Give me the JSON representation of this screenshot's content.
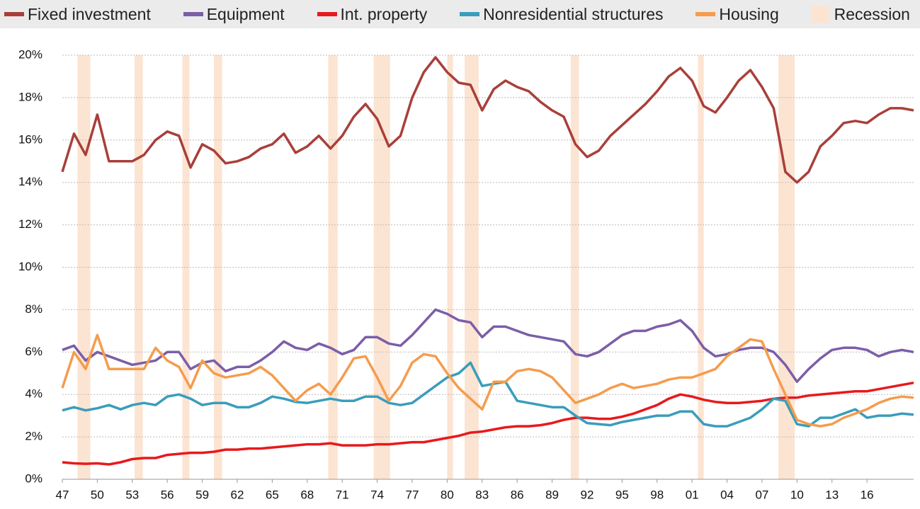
{
  "chart_data": {
    "type": "line",
    "x": [
      1947,
      1948,
      1949,
      1950,
      1951,
      1952,
      1953,
      1954,
      1955,
      1956,
      1957,
      1958,
      1959,
      1960,
      1961,
      1962,
      1963,
      1964,
      1965,
      1966,
      1967,
      1968,
      1969,
      1970,
      1971,
      1972,
      1973,
      1974,
      1975,
      1976,
      1977,
      1978,
      1979,
      1980,
      1981,
      1982,
      1983,
      1984,
      1985,
      1986,
      1987,
      1988,
      1989,
      1990,
      1991,
      1992,
      1993,
      1994,
      1995,
      1996,
      1997,
      1998,
      1999,
      2000,
      2001,
      2002,
      2003,
      2004,
      2005,
      2006,
      2007,
      2008,
      2009,
      2010,
      2011,
      2012,
      2013,
      2014,
      2015,
      2016,
      2017,
      2018,
      2019,
      2020
    ],
    "xlim": [
      1947,
      2020
    ],
    "xticks": [
      {
        "value": 1947,
        "label": "47"
      },
      {
        "value": 1950,
        "label": "50"
      },
      {
        "value": 1953,
        "label": "53"
      },
      {
        "value": 1956,
        "label": "56"
      },
      {
        "value": 1959,
        "label": "59"
      },
      {
        "value": 1962,
        "label": "62"
      },
      {
        "value": 1965,
        "label": "65"
      },
      {
        "value": 1968,
        "label": "68"
      },
      {
        "value": 1971,
        "label": "71"
      },
      {
        "value": 1974,
        "label": "74"
      },
      {
        "value": 1977,
        "label": "77"
      },
      {
        "value": 1980,
        "label": "80"
      },
      {
        "value": 1983,
        "label": "83"
      },
      {
        "value": 1986,
        "label": "86"
      },
      {
        "value": 1989,
        "label": "89"
      },
      {
        "value": 1992,
        "label": "92"
      },
      {
        "value": 1995,
        "label": "95"
      },
      {
        "value": 1998,
        "label": "98"
      },
      {
        "value": 2001,
        "label": "01"
      },
      {
        "value": 2004,
        "label": "04"
      },
      {
        "value": 2007,
        "label": "07"
      },
      {
        "value": 2010,
        "label": "10"
      },
      {
        "value": 2013,
        "label": "13"
      },
      {
        "value": 2016,
        "label": "16"
      }
    ],
    "ylim": [
      0,
      20
    ],
    "yticks": [
      {
        "value": 0,
        "label": "0%"
      },
      {
        "value": 2,
        "label": "2%"
      },
      {
        "value": 4,
        "label": "4%"
      },
      {
        "value": 6,
        "label": "6%"
      },
      {
        "value": 8,
        "label": "8%"
      },
      {
        "value": 10,
        "label": "10%"
      },
      {
        "value": 12,
        "label": "12%"
      },
      {
        "value": 14,
        "label": "14%"
      },
      {
        "value": 16,
        "label": "16%"
      },
      {
        "value": 18,
        "label": "18%"
      },
      {
        "value": 20,
        "label": "20%"
      }
    ],
    "grid": true,
    "series": [
      {
        "name": "Fixed investment",
        "color": "#a93f3a",
        "values": [
          14.5,
          16.3,
          15.3,
          17.2,
          15.0,
          15.0,
          15.0,
          15.3,
          16.0,
          16.4,
          16.2,
          14.7,
          15.8,
          15.5,
          14.9,
          15.0,
          15.2,
          15.6,
          15.8,
          16.3,
          15.4,
          15.7,
          16.2,
          15.6,
          16.2,
          17.1,
          17.7,
          17.0,
          15.7,
          16.2,
          18.0,
          19.2,
          19.9,
          19.2,
          18.7,
          18.6,
          17.4,
          18.4,
          18.8,
          18.5,
          18.3,
          17.8,
          17.4,
          17.1,
          15.8,
          15.2,
          15.5,
          16.2,
          16.7,
          17.2,
          17.7,
          18.3,
          19.0,
          19.4,
          18.8,
          17.6,
          17.3,
          18.0,
          18.8,
          19.3,
          18.5,
          17.5,
          14.5,
          14.0,
          14.5,
          15.7,
          16.2,
          16.8,
          16.9,
          16.8,
          17.2,
          17.5,
          17.5,
          17.4
        ]
      },
      {
        "name": "Equipment",
        "color": "#7b5ea7",
        "values": [
          6.1,
          6.3,
          5.6,
          6.0,
          5.8,
          5.6,
          5.4,
          5.5,
          5.6,
          6.0,
          6.0,
          5.2,
          5.5,
          5.6,
          5.1,
          5.3,
          5.3,
          5.6,
          6.0,
          6.5,
          6.2,
          6.1,
          6.4,
          6.2,
          5.9,
          6.1,
          6.7,
          6.7,
          6.4,
          6.3,
          6.8,
          7.4,
          8.0,
          7.8,
          7.5,
          7.4,
          6.7,
          7.2,
          7.2,
          7.0,
          6.8,
          6.7,
          6.6,
          6.5,
          5.9,
          5.8,
          6.0,
          6.4,
          6.8,
          7.0,
          7.0,
          7.2,
          7.3,
          7.5,
          7.0,
          6.2,
          5.8,
          5.9,
          6.1,
          6.2,
          6.2,
          6.0,
          5.4,
          4.6,
          5.2,
          5.7,
          6.1,
          6.2,
          6.2,
          6.1,
          5.8,
          6.0,
          6.1,
          6.0
        ]
      },
      {
        "name": "Int. property",
        "color": "#e8191c",
        "values": [
          0.8,
          0.75,
          0.73,
          0.75,
          0.7,
          0.8,
          0.95,
          1.0,
          1.0,
          1.15,
          1.2,
          1.25,
          1.25,
          1.3,
          1.4,
          1.4,
          1.45,
          1.45,
          1.5,
          1.55,
          1.6,
          1.65,
          1.65,
          1.7,
          1.6,
          1.6,
          1.6,
          1.65,
          1.65,
          1.7,
          1.75,
          1.75,
          1.85,
          1.95,
          2.05,
          2.2,
          2.25,
          2.35,
          2.45,
          2.5,
          2.5,
          2.55,
          2.65,
          2.8,
          2.9,
          2.9,
          2.85,
          2.85,
          2.95,
          3.1,
          3.3,
          3.5,
          3.8,
          4.0,
          3.9,
          3.75,
          3.65,
          3.6,
          3.6,
          3.65,
          3.7,
          3.8,
          3.85,
          3.85,
          3.95,
          4.0,
          4.05,
          4.1,
          4.15,
          4.15,
          4.25,
          4.35,
          4.45,
          4.55
        ]
      },
      {
        "name": "Nonresidential structures",
        "color": "#3a9dbb",
        "values": [
          3.25,
          3.4,
          3.25,
          3.35,
          3.5,
          3.3,
          3.5,
          3.6,
          3.5,
          3.9,
          4.0,
          3.8,
          3.5,
          3.6,
          3.6,
          3.4,
          3.4,
          3.6,
          3.9,
          3.8,
          3.65,
          3.6,
          3.7,
          3.8,
          3.7,
          3.7,
          3.9,
          3.9,
          3.6,
          3.5,
          3.6,
          4.0,
          4.4,
          4.8,
          5.0,
          5.5,
          4.4,
          4.5,
          4.6,
          3.7,
          3.6,
          3.5,
          3.4,
          3.4,
          3.0,
          2.65,
          2.6,
          2.55,
          2.7,
          2.8,
          2.9,
          3.0,
          3.0,
          3.2,
          3.2,
          2.6,
          2.5,
          2.5,
          2.7,
          2.9,
          3.3,
          3.8,
          3.7,
          2.6,
          2.5,
          2.9,
          2.9,
          3.1,
          3.3,
          2.9,
          3.0,
          3.0,
          3.1,
          3.05
        ]
      },
      {
        "name": "Housing",
        "color": "#f59c4d",
        "values": [
          4.3,
          6.0,
          5.2,
          6.8,
          5.2,
          5.2,
          5.2,
          5.2,
          6.2,
          5.6,
          5.3,
          4.3,
          5.6,
          5.0,
          4.8,
          4.9,
          5.0,
          5.3,
          4.9,
          4.3,
          3.7,
          4.2,
          4.5,
          4.0,
          4.8,
          5.7,
          5.8,
          4.8,
          3.7,
          4.4,
          5.5,
          5.9,
          5.8,
          5.0,
          4.3,
          3.8,
          3.3,
          4.6,
          4.6,
          5.1,
          5.2,
          5.1,
          4.8,
          4.2,
          3.6,
          3.8,
          4.0,
          4.3,
          4.5,
          4.3,
          4.4,
          4.5,
          4.7,
          4.8,
          4.8,
          5.0,
          5.2,
          5.8,
          6.2,
          6.6,
          6.5,
          5.2,
          4.0,
          2.8,
          2.6,
          2.5,
          2.6,
          2.9,
          3.1,
          3.3,
          3.6,
          3.8,
          3.9,
          3.85
        ]
      }
    ],
    "recession": {
      "name": "Recession",
      "color": "#fce4d2",
      "periods": [
        [
          1948.3,
          1949.4
        ],
        [
          1953.2,
          1953.9
        ],
        [
          1957.3,
          1957.9
        ],
        [
          1960.0,
          1960.7
        ],
        [
          1969.8,
          1970.6
        ],
        [
          1973.7,
          1975.1
        ],
        [
          1980.0,
          1980.5
        ],
        [
          1981.5,
          1982.7
        ],
        [
          1990.6,
          1991.3
        ],
        [
          2001.5,
          2002.0
        ],
        [
          2008.4,
          2009.8
        ]
      ]
    }
  }
}
